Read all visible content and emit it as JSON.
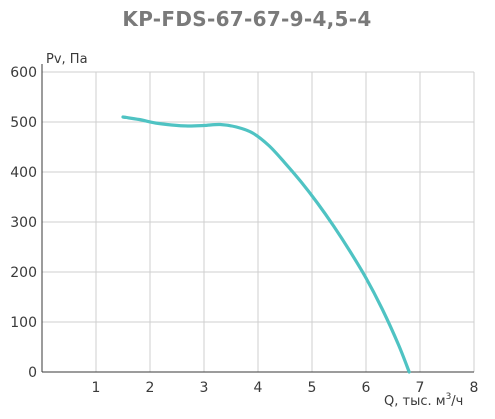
{
  "chart_data": {
    "type": "line",
    "title": "KP-FDS-67-67-9-4,5-4",
    "xlabel": "Q, тыс. м³/ч",
    "xlabel_main": "Q, тыс. м",
    "xlabel_sup": "3",
    "xlabel_tail": "/ч",
    "ylabel": "Pv, Па",
    "xlim": [
      0,
      8
    ],
    "ylim": [
      0,
      600
    ],
    "x_ticks": [
      1,
      2,
      3,
      4,
      5,
      6,
      7,
      8
    ],
    "y_ticks": [
      0,
      100,
      200,
      300,
      400,
      500,
      600
    ],
    "x_tick_labels": [
      "1",
      "2",
      "3",
      "4",
      "5",
      "6",
      "7",
      "8"
    ],
    "y_tick_labels": [
      "0",
      "100",
      "200",
      "300",
      "400",
      "500",
      "600"
    ],
    "grid": true,
    "series": [
      {
        "color": "#4fc3c3",
        "x": [
          1.5,
          1.8,
          2.1,
          2.4,
          2.7,
          3.0,
          3.3,
          3.6,
          3.9,
          4.2,
          4.5,
          4.8,
          5.1,
          5.4,
          5.7,
          6.0,
          6.3,
          6.6,
          6.8
        ],
        "y": [
          510,
          505,
          498,
          494,
          492,
          493,
          495,
          490,
          478,
          453,
          418,
          380,
          338,
          292,
          242,
          188,
          126,
          55,
          0
        ]
      }
    ]
  }
}
